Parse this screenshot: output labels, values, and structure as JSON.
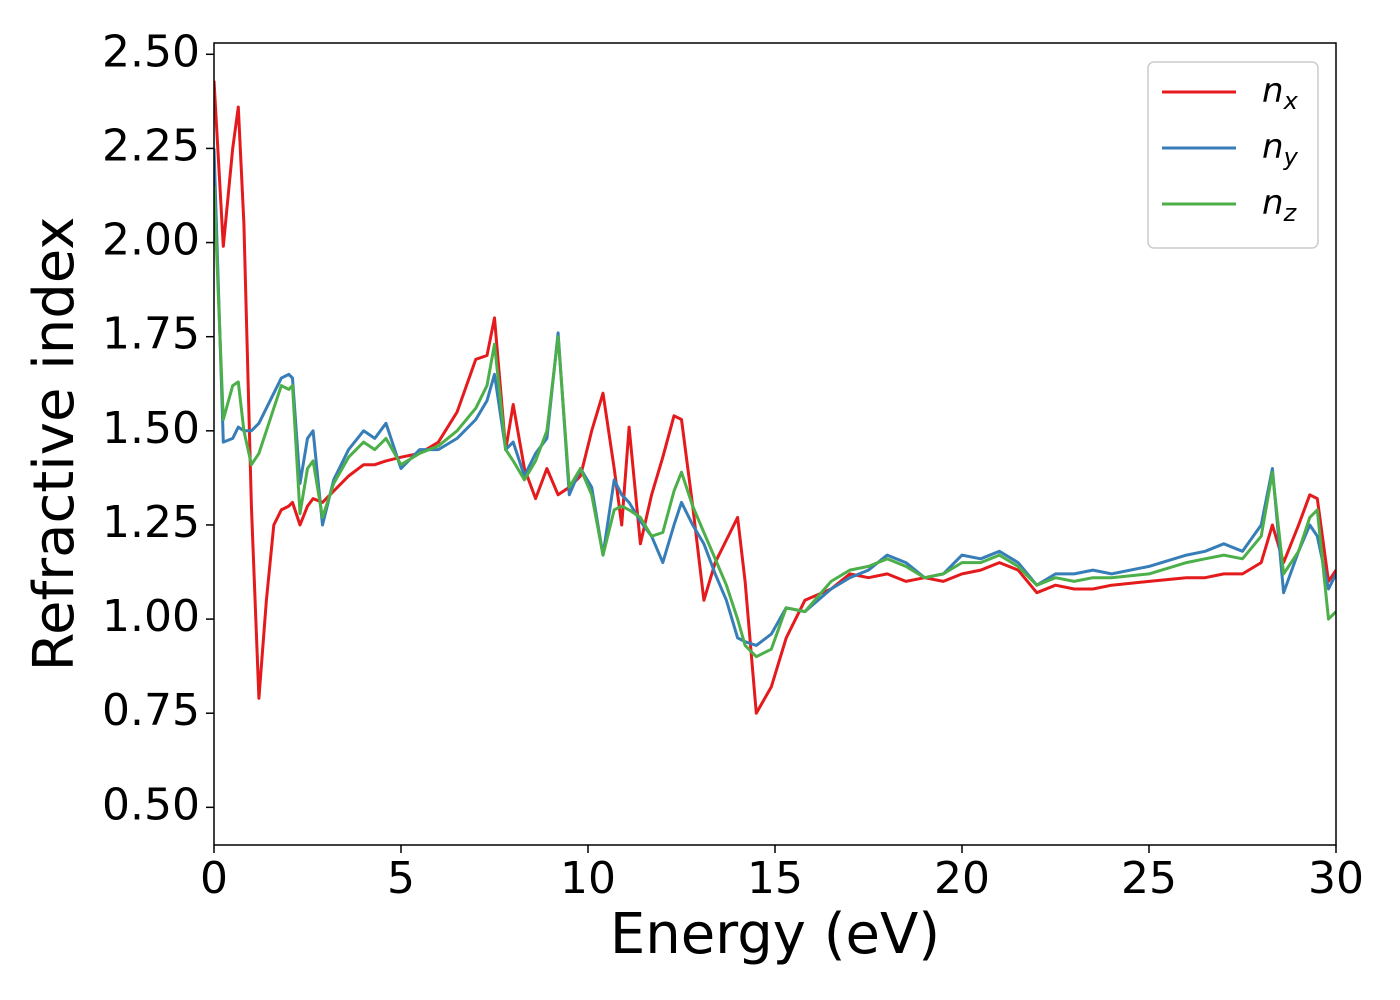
{
  "chart_data": {
    "type": "line",
    "xlabel": "Energy (eV)",
    "ylabel": "Refractive index",
    "x": [
      0,
      0.25,
      0.5,
      0.65,
      0.8,
      1.0,
      1.2,
      1.4,
      1.6,
      1.8,
      2.0,
      2.1,
      2.3,
      2.5,
      2.65,
      2.9,
      3.2,
      3.6,
      4.0,
      4.3,
      4.6,
      5.0,
      5.5,
      6.0,
      6.5,
      7.0,
      7.3,
      7.5,
      7.8,
      8.0,
      8.3,
      8.6,
      8.9,
      9.2,
      9.5,
      9.8,
      10.1,
      10.4,
      10.7,
      10.9,
      11.1,
      11.4,
      11.7,
      12.0,
      12.3,
      12.5,
      12.8,
      13.1,
      13.4,
      13.7,
      14.0,
      14.2,
      14.5,
      14.9,
      15.3,
      15.8,
      16.5,
      17.0,
      17.5,
      18.0,
      18.5,
      19.0,
      19.5,
      20.0,
      20.5,
      21.0,
      21.5,
      22.0,
      22.5,
      23.0,
      23.5,
      24.0,
      25.0,
      26.0,
      26.5,
      27.0,
      27.5,
      28.0,
      28.3,
      28.6,
      29.0,
      29.3,
      29.5,
      29.8,
      30.0
    ],
    "series": [
      {
        "name": "n_x",
        "color": "#e41a1c",
        "values": [
          2.43,
          1.99,
          2.25,
          2.36,
          2.05,
          1.3,
          0.79,
          1.05,
          1.25,
          1.29,
          1.3,
          1.31,
          1.25,
          1.3,
          1.32,
          1.31,
          1.34,
          1.38,
          1.41,
          1.41,
          1.42,
          1.43,
          1.44,
          1.47,
          1.55,
          1.69,
          1.7,
          1.8,
          1.45,
          1.57,
          1.4,
          1.32,
          1.4,
          1.33,
          1.35,
          1.38,
          1.5,
          1.6,
          1.4,
          1.25,
          1.51,
          1.2,
          1.33,
          1.43,
          1.54,
          1.53,
          1.3,
          1.05,
          1.15,
          1.21,
          1.27,
          1.1,
          0.75,
          0.82,
          0.95,
          1.05,
          1.08,
          1.12,
          1.11,
          1.12,
          1.1,
          1.11,
          1.1,
          1.12,
          1.13,
          1.15,
          1.13,
          1.07,
          1.09,
          1.08,
          1.08,
          1.09,
          1.1,
          1.11,
          1.11,
          1.12,
          1.12,
          1.15,
          1.25,
          1.15,
          1.25,
          1.33,
          1.32,
          1.1,
          1.13
        ]
      },
      {
        "name": "n_y",
        "color": "#377eb8",
        "values": [
          2.25,
          1.47,
          1.48,
          1.51,
          1.5,
          1.5,
          1.52,
          1.56,
          1.6,
          1.64,
          1.65,
          1.64,
          1.36,
          1.48,
          1.5,
          1.25,
          1.37,
          1.45,
          1.5,
          1.48,
          1.52,
          1.4,
          1.45,
          1.45,
          1.48,
          1.53,
          1.58,
          1.65,
          1.45,
          1.47,
          1.38,
          1.44,
          1.48,
          1.76,
          1.33,
          1.4,
          1.35,
          1.17,
          1.37,
          1.33,
          1.31,
          1.26,
          1.22,
          1.15,
          1.25,
          1.31,
          1.25,
          1.2,
          1.12,
          1.05,
          0.95,
          0.94,
          0.93,
          0.96,
          1.03,
          1.02,
          1.08,
          1.11,
          1.13,
          1.17,
          1.15,
          1.11,
          1.12,
          1.17,
          1.16,
          1.18,
          1.15,
          1.09,
          1.12,
          1.12,
          1.13,
          1.12,
          1.14,
          1.17,
          1.18,
          1.2,
          1.18,
          1.25,
          1.4,
          1.07,
          1.18,
          1.25,
          1.22,
          1.08,
          1.12
        ]
      },
      {
        "name": "n_z",
        "color": "#4daf4a",
        "values": [
          2.15,
          1.53,
          1.62,
          1.63,
          1.5,
          1.41,
          1.44,
          1.5,
          1.56,
          1.62,
          1.61,
          1.62,
          1.28,
          1.4,
          1.42,
          1.27,
          1.36,
          1.43,
          1.47,
          1.45,
          1.48,
          1.41,
          1.44,
          1.46,
          1.5,
          1.56,
          1.62,
          1.73,
          1.45,
          1.42,
          1.37,
          1.42,
          1.5,
          1.75,
          1.35,
          1.4,
          1.33,
          1.17,
          1.29,
          1.3,
          1.29,
          1.27,
          1.22,
          1.23,
          1.34,
          1.39,
          1.3,
          1.23,
          1.16,
          1.09,
          1.0,
          0.93,
          0.9,
          0.92,
          1.03,
          1.02,
          1.1,
          1.13,
          1.14,
          1.16,
          1.14,
          1.11,
          1.12,
          1.15,
          1.15,
          1.17,
          1.14,
          1.09,
          1.11,
          1.1,
          1.11,
          1.11,
          1.12,
          1.15,
          1.16,
          1.17,
          1.16,
          1.22,
          1.39,
          1.12,
          1.18,
          1.27,
          1.29,
          1.0,
          1.02
        ]
      }
    ],
    "xlim": [
      0,
      30
    ],
    "xticks": [
      0,
      5,
      10,
      15,
      20,
      25,
      30
    ],
    "ylim": [
      0.4,
      2.53
    ],
    "yticks": [
      {
        "value": 0.5,
        "label": "0.50"
      },
      0.75,
      {
        "value": 1.0,
        "label": "1.00"
      },
      1.25,
      {
        "value": 1.5,
        "label": "1.50"
      },
      1.75,
      {
        "value": 2.0,
        "label": "2.00"
      },
      2.25,
      {
        "value": 2.5,
        "label": "2.50"
      }
    ],
    "legend": "upper right",
    "grid": false
  }
}
